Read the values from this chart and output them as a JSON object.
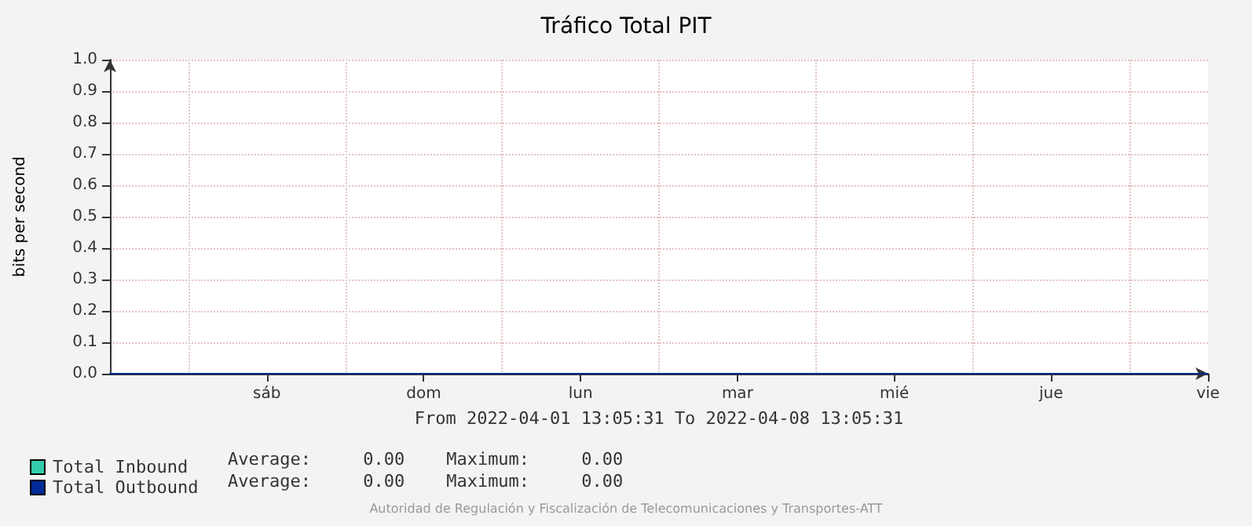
{
  "chart_data": {
    "type": "line",
    "title": "Tráfico Total PIT",
    "ylabel": "bits per second",
    "xlabel": "From 2022-04-01 13:05:31 To 2022-04-08 13:05:31",
    "categories": [
      null,
      null,
      "sáb",
      null,
      "dom",
      null,
      "lun",
      null,
      "mar",
      null,
      "mié",
      null,
      "jue",
      null,
      "vie"
    ],
    "series": [
      {
        "name": "Total Inbound",
        "color": "#33ccaa",
        "values": [
          null,
          null,
          null,
          null,
          null,
          null,
          null,
          null,
          null,
          null,
          null,
          null,
          null,
          null,
          null
        ]
      },
      {
        "name": "Total Outbound",
        "color": "#002a97",
        "values": [
          0,
          0,
          0,
          0,
          0,
          0,
          0,
          0,
          0,
          0,
          0,
          0,
          0,
          0,
          0
        ]
      }
    ],
    "ylim": [
      0,
      1
    ],
    "yticks": [
      {
        "value": 0,
        "label": "0.0"
      },
      {
        "value": 0.1,
        "label": "0.1"
      },
      {
        "value": 0.2,
        "label": "0.2"
      },
      {
        "value": 0.3,
        "label": "0.3"
      },
      {
        "value": 0.4,
        "label": "0.4"
      },
      {
        "value": 0.5,
        "label": "0.5"
      },
      {
        "value": 0.6,
        "label": "0.6"
      },
      {
        "value": 0.7,
        "label": "0.7"
      },
      {
        "value": 0.8,
        "label": "0.8"
      },
      {
        "value": 0.9,
        "label": "0.9"
      },
      {
        "value": 1,
        "label": "1.0"
      }
    ],
    "grid": true,
    "legend": "bottom left",
    "marker": "none",
    "line_style": "solid",
    "annotations": [
      "Average:     0.00    Maximum:     0.00",
      "Average:     0.00    Maximum:     0.00",
      "Autoridad de Regulación y Fiscalización de Telecomunicaciones y Transportes-ATT"
    ]
  }
}
